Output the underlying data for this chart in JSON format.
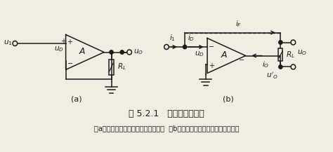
{
  "title": "图 5.2.1   负反馈放大电路",
  "caption": "（a）输出电压引回后影响净输入电压  （b）输出电流引回后影响净输入电流",
  "label_a": "(a)",
  "label_b": "(b)",
  "bg_color": "#f2ede3",
  "line_color": "#1a1a1a",
  "font_size_title": 9,
  "font_size_caption": 7,
  "font_size_label": 8
}
